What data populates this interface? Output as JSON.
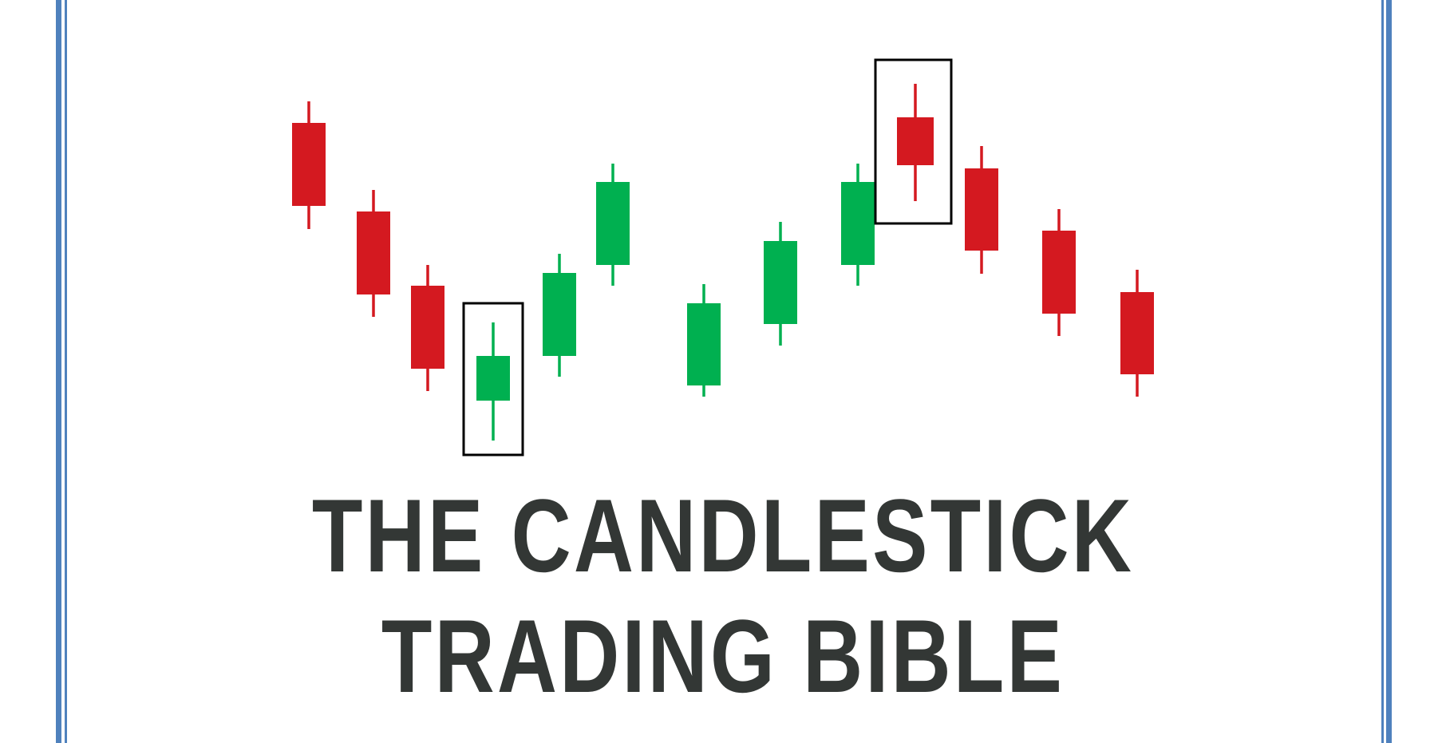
{
  "cover": {
    "title_line_1": "THE CANDLESTICK",
    "title_line_2": "TRADING BIBLE"
  },
  "colors": {
    "bearish": "#d41920",
    "bullish": "#00b050",
    "frame": "#4f81bd",
    "title": "#333735",
    "highlight_box": "#000000"
  },
  "candles": [
    {
      "direction": "bearish",
      "highlighted": false
    },
    {
      "direction": "bearish",
      "highlighted": false
    },
    {
      "direction": "bearish",
      "highlighted": false
    },
    {
      "direction": "bullish",
      "highlighted": true
    },
    {
      "direction": "bullish",
      "highlighted": false
    },
    {
      "direction": "bullish",
      "highlighted": false
    },
    {
      "direction": "bullish",
      "highlighted": false
    },
    {
      "direction": "bullish",
      "highlighted": false
    },
    {
      "direction": "bullish",
      "highlighted": false
    },
    {
      "direction": "bearish",
      "highlighted": true
    },
    {
      "direction": "bearish",
      "highlighted": false
    },
    {
      "direction": "bearish",
      "highlighted": false
    },
    {
      "direction": "bearish",
      "highlighted": false
    }
  ]
}
